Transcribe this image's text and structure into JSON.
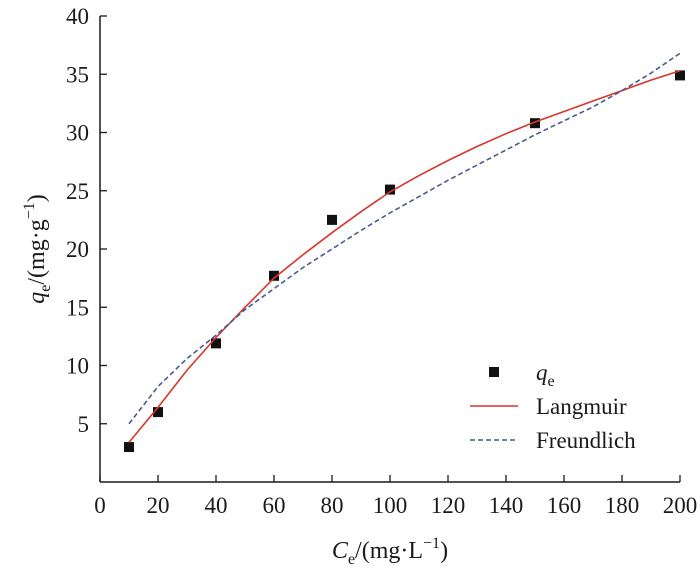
{
  "chart_data": {
    "type": "scatter",
    "x_axis": {
      "ticks": [
        0,
        20,
        40,
        60,
        80,
        100,
        120,
        140,
        160,
        180,
        200
      ],
      "label": {
        "symbol": "C",
        "subscript": "e",
        "units": "/(mg·L",
        "power": "−1",
        "close": ")"
      }
    },
    "y_axis": {
      "ticks": [
        5,
        10,
        15,
        20,
        25,
        30,
        35,
        40
      ],
      "label": {
        "symbol": "q",
        "subscript": "e",
        "units": "/(mg·g",
        "power": "−1",
        "close": ")"
      }
    },
    "xlim": [
      0,
      200
    ],
    "ylim": [
      0,
      40
    ],
    "grid": false,
    "legend_position": "bottom-right",
    "series": [
      {
        "name_symbol": "q",
        "name_subscript": "e",
        "kind": "scatter",
        "marker": "square",
        "color": "#111111",
        "points": [
          [
            10,
            3.0
          ],
          [
            20,
            6.0
          ],
          [
            40,
            11.9
          ],
          [
            60,
            17.7
          ],
          [
            80,
            22.5
          ],
          [
            100,
            25.1
          ],
          [
            150,
            30.8
          ],
          [
            200,
            34.9
          ]
        ]
      },
      {
        "name": "Langmuir",
        "kind": "line",
        "style": "solid",
        "color": "#d9352a",
        "points": [
          [
            10,
            3.4
          ],
          [
            20,
            6.4
          ],
          [
            30,
            9.6
          ],
          [
            40,
            12.4
          ],
          [
            50,
            15.0
          ],
          [
            60,
            17.5
          ],
          [
            70,
            19.5
          ],
          [
            80,
            21.4
          ],
          [
            90,
            23.2
          ],
          [
            100,
            24.9
          ],
          [
            110,
            26.3
          ],
          [
            120,
            27.6
          ],
          [
            130,
            28.8
          ],
          [
            140,
            29.9
          ],
          [
            150,
            30.9
          ],
          [
            160,
            31.8
          ],
          [
            170,
            32.7
          ],
          [
            180,
            33.6
          ],
          [
            190,
            34.5
          ],
          [
            200,
            35.3
          ]
        ]
      },
      {
        "name": "Freundlich",
        "kind": "line",
        "style": "dashed",
        "color": "#4a5a96",
        "points": [
          [
            10,
            5.0
          ],
          [
            20,
            8.2
          ],
          [
            30,
            10.6
          ],
          [
            40,
            12.6
          ],
          [
            50,
            14.8
          ],
          [
            60,
            16.6
          ],
          [
            70,
            18.4
          ],
          [
            80,
            20.0
          ],
          [
            90,
            21.6
          ],
          [
            100,
            23.1
          ],
          [
            110,
            24.5
          ],
          [
            120,
            25.9
          ],
          [
            130,
            27.2
          ],
          [
            140,
            28.5
          ],
          [
            150,
            29.8
          ],
          [
            160,
            31.0
          ],
          [
            170,
            32.2
          ],
          [
            180,
            33.6
          ],
          [
            190,
            35.1
          ],
          [
            200,
            36.8
          ]
        ]
      }
    ]
  }
}
